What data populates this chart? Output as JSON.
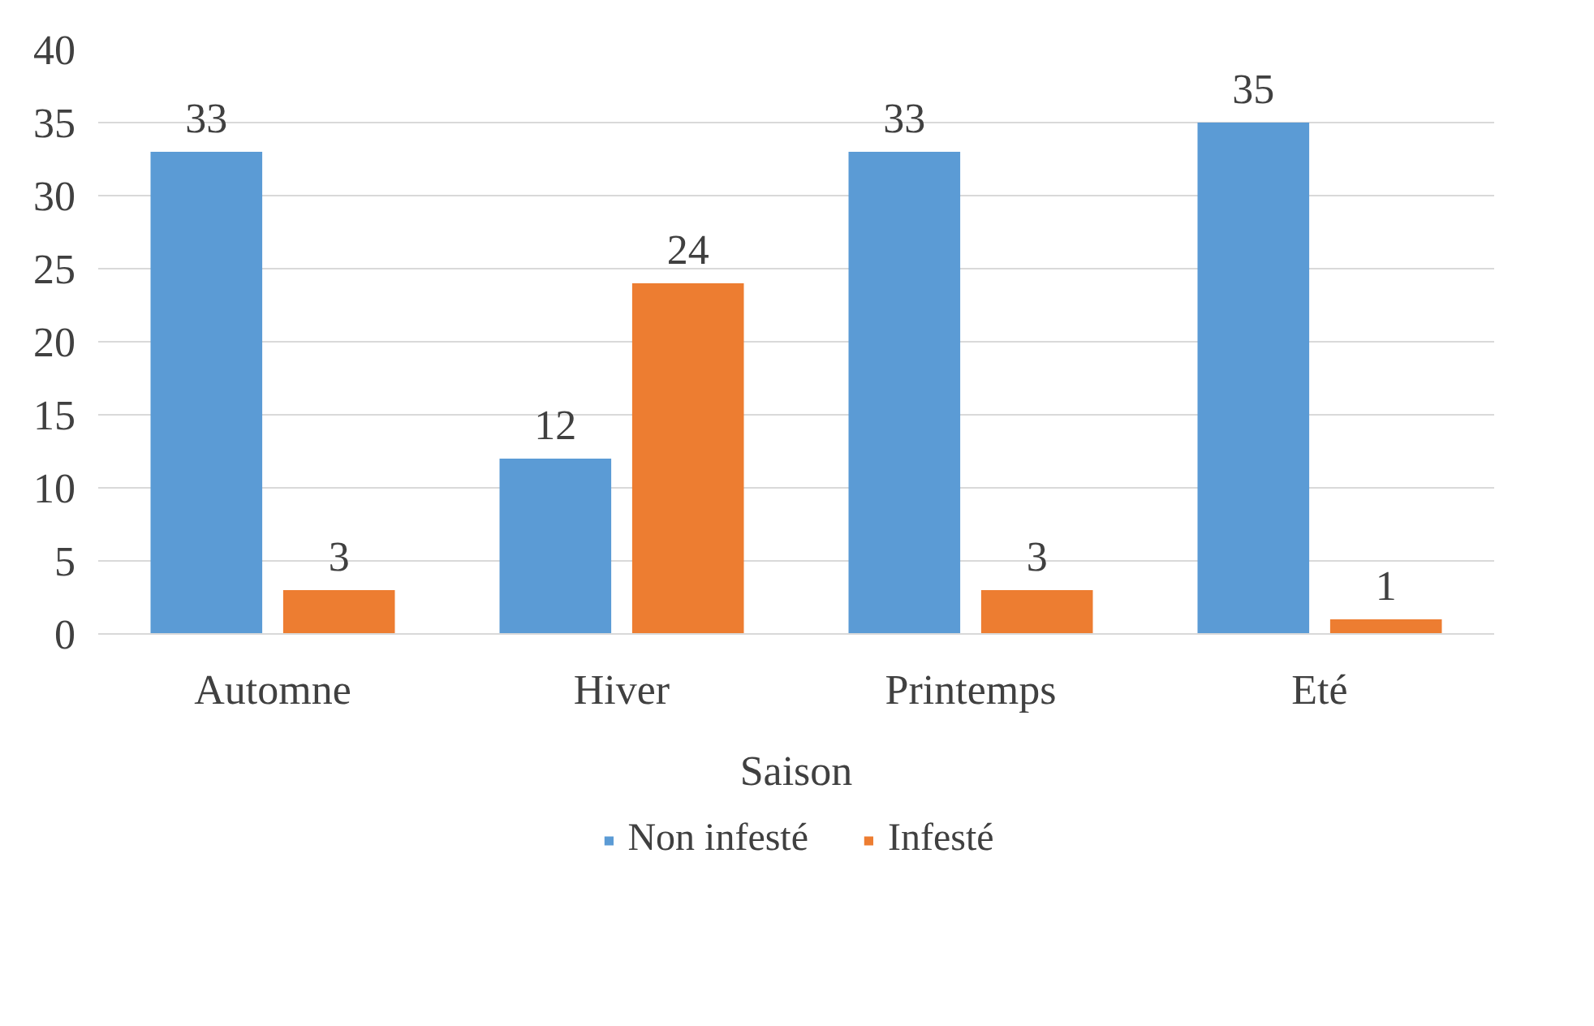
{
  "chart_data": {
    "type": "bar",
    "xlabel": "Saison",
    "categories": [
      "Automne",
      "Hiver",
      "Printemps",
      "Eté"
    ],
    "series": [
      {
        "name": "Non infesté",
        "color": "#5b9bd5",
        "values": [
          33,
          12,
          33,
          35
        ]
      },
      {
        "name": "Infesté",
        "color": "#ed7d31",
        "values": [
          3,
          24,
          3,
          1
        ]
      }
    ],
    "ylim": [
      0,
      40
    ],
    "yticks": [
      0,
      5,
      10,
      15,
      20,
      25,
      30,
      35,
      40
    ],
    "grid": "y",
    "legend": "bottom",
    "data_labels": true
  }
}
